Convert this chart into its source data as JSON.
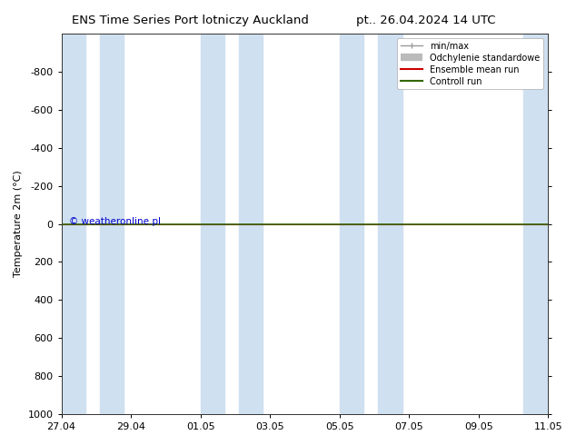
{
  "title_left": "ENS Time Series Port lotniczy Auckland",
  "title_right": "pt.. 26.04.2024 14 UTC",
  "ylabel": "Temperature 2m (°C)",
  "ylim_top": -1000,
  "ylim_bottom": 1000,
  "yticks": [
    -800,
    -600,
    -400,
    -200,
    0,
    200,
    400,
    600,
    800,
    1000
  ],
  "background_color": "#ffffff",
  "plot_bg_color": "#ffffff",
  "shaded_band_color": "#cfe0f0",
  "line_y": 0,
  "green_line_color": "#336600",
  "red_line_color": "#cc0000",
  "watermark_text": "© weatheronline.pl",
  "watermark_color": "#0000cc",
  "shaded_regions_x": [
    [
      0.0,
      0.7
    ],
    [
      1.1,
      1.8
    ],
    [
      4.0,
      4.7
    ],
    [
      5.1,
      5.8
    ],
    [
      8.0,
      8.7
    ],
    [
      9.1,
      9.8
    ],
    [
      13.3,
      14.0
    ]
  ],
  "x_tick_labels": [
    "27.04",
    "29.04",
    "01.05",
    "03.05",
    "05.05",
    "07.05",
    "09.05",
    "11.05"
  ],
  "x_tick_positions": [
    0,
    2,
    4,
    6,
    8,
    10,
    12,
    14
  ],
  "xlim": [
    0,
    14
  ]
}
